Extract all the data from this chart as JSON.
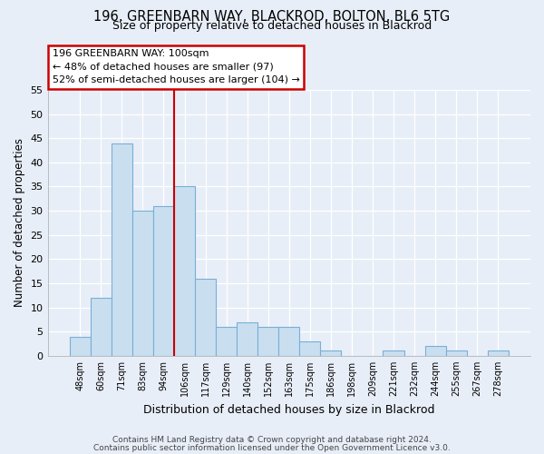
{
  "title1": "196, GREENBARN WAY, BLACKROD, BOLTON, BL6 5TG",
  "title2": "Size of property relative to detached houses in Blackrod",
  "xlabel": "Distribution of detached houses by size in Blackrod",
  "ylabel": "Number of detached properties",
  "bar_labels": [
    "48sqm",
    "60sqm",
    "71sqm",
    "83sqm",
    "94sqm",
    "106sqm",
    "117sqm",
    "129sqm",
    "140sqm",
    "152sqm",
    "163sqm",
    "175sqm",
    "186sqm",
    "198sqm",
    "209sqm",
    "221sqm",
    "232sqm",
    "244sqm",
    "255sqm",
    "267sqm",
    "278sqm"
  ],
  "bar_values": [
    4,
    12,
    44,
    30,
    31,
    35,
    16,
    6,
    7,
    6,
    6,
    3,
    1,
    0,
    0,
    1,
    0,
    2,
    1,
    0,
    1
  ],
  "bar_color": "#c9dff0",
  "bar_edge_color": "#7aaed6",
  "highlight_color": "#cc0000",
  "annotation_line1": "196 GREENBARN WAY: 100sqm",
  "annotation_line2": "← 48% of detached houses are smaller (97)",
  "annotation_line3": "52% of semi-detached houses are larger (104) →",
  "annotation_box_color": "#ffffff",
  "annotation_box_edge": "#cc0000",
  "ylim": [
    0,
    55
  ],
  "yticks": [
    0,
    5,
    10,
    15,
    20,
    25,
    30,
    35,
    40,
    45,
    50,
    55
  ],
  "bg_color": "#e8eef8",
  "grid_color": "#ffffff",
  "footer1": "Contains HM Land Registry data © Crown copyright and database right 2024.",
  "footer2": "Contains public sector information licensed under the Open Government Licence v3.0."
}
